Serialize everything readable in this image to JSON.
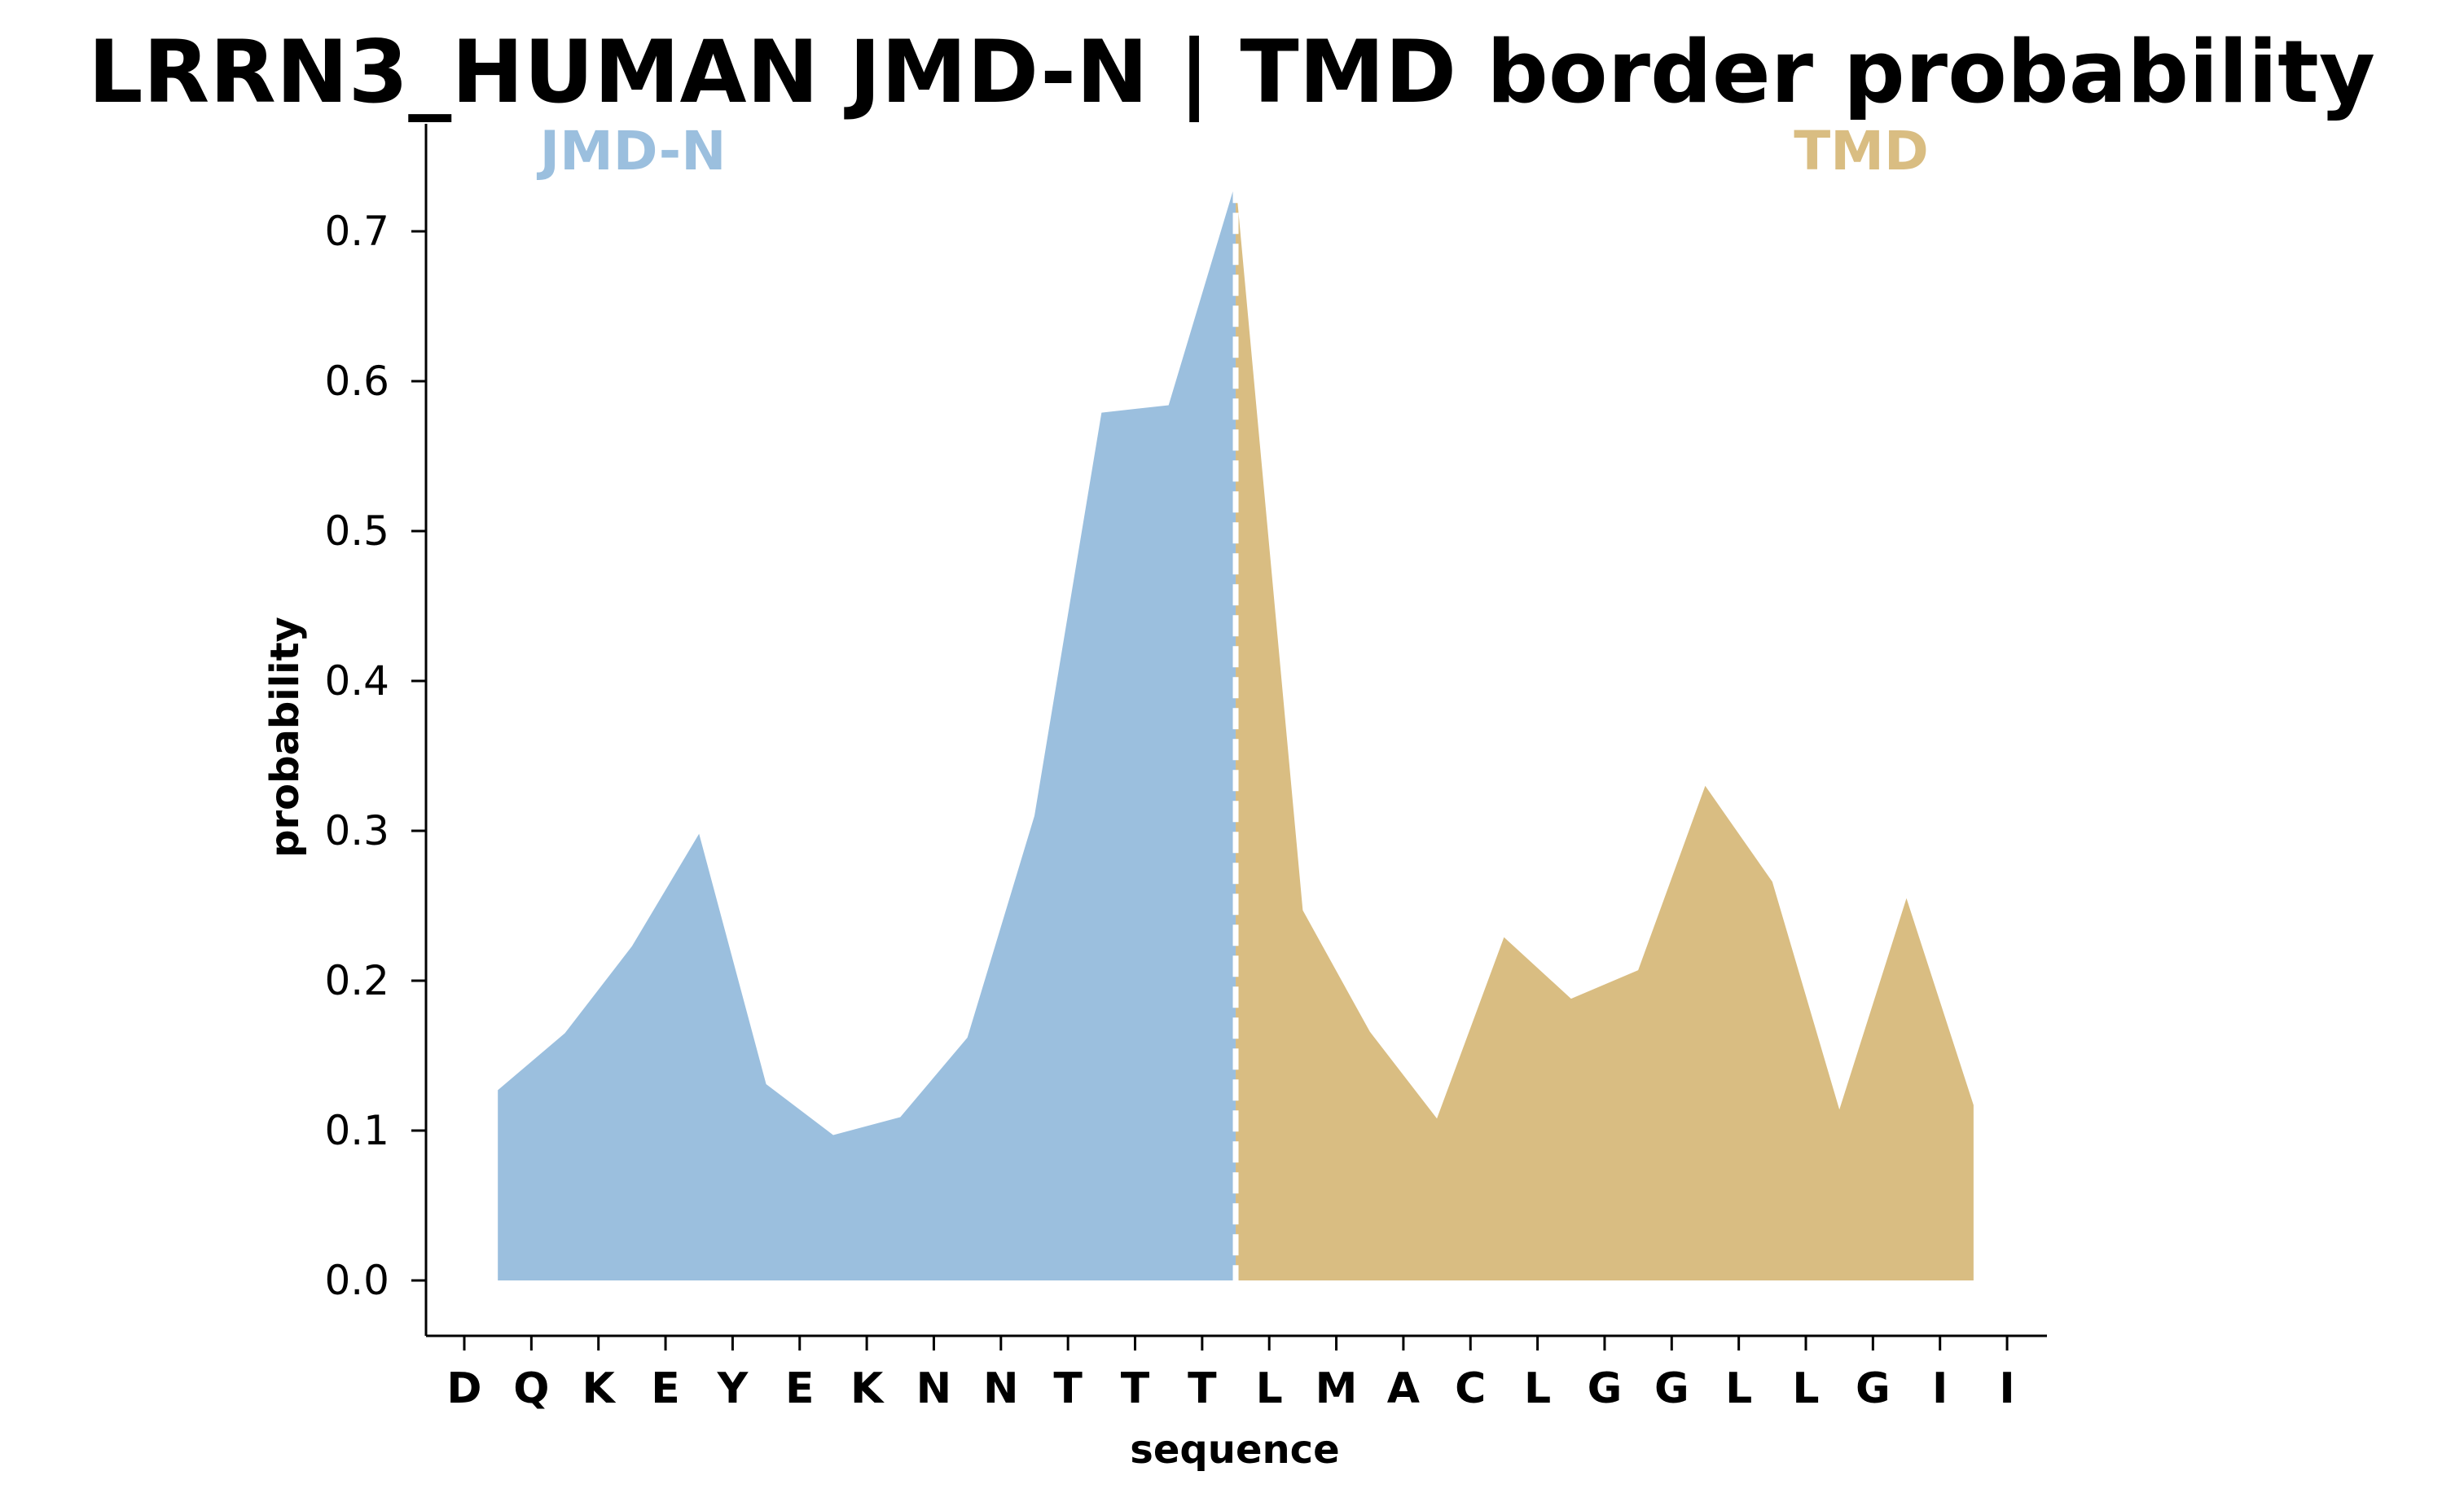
{
  "chart_data": {
    "type": "area",
    "title": "LRRN3_HUMAN JMD-N | TMD border probability",
    "xlabel": "sequence",
    "ylabel": "probability",
    "ylim": [
      -0.035,
      0.77
    ],
    "yticks": [
      "0.0",
      "0.1",
      "0.2",
      "0.3",
      "0.4",
      "0.5",
      "0.6",
      "0.7"
    ],
    "categories": [
      "D",
      "Q",
      "K",
      "E",
      "Y",
      "E",
      "K",
      "N",
      "N",
      "T",
      "T",
      "T",
      "L",
      "M",
      "A",
      "C",
      "L",
      "G",
      "G",
      "L",
      "L",
      "G",
      "I",
      "I"
    ],
    "border": 11.5,
    "regions": [
      {
        "label": "JMD-N",
        "color": "#9bbfde"
      },
      {
        "label": "TMD",
        "color": "#d9bd82"
      }
    ],
    "series": [
      {
        "x": [
          0.5,
          1.5,
          2.5,
          3.5,
          4.5,
          5.5,
          6.5,
          7.5,
          8.5,
          9.5,
          10.5,
          11.5,
          12.5,
          13.5,
          14.5,
          15.5,
          16.5,
          17.5,
          18.5,
          19.5,
          20.5,
          21.5,
          22.5,
          23.5
        ],
        "values": [
          0.127,
          0.165,
          0.223,
          0.298,
          0.131,
          0.097,
          0.109,
          0.162,
          0.31,
          0.579,
          0.584,
          0.733,
          0.247,
          0.166,
          0.108,
          0.229,
          0.188,
          0.207,
          0.33,
          0.266,
          0.114,
          0.255,
          0.117,
          null
        ]
      }
    ],
    "grid": false,
    "legend": "none"
  }
}
